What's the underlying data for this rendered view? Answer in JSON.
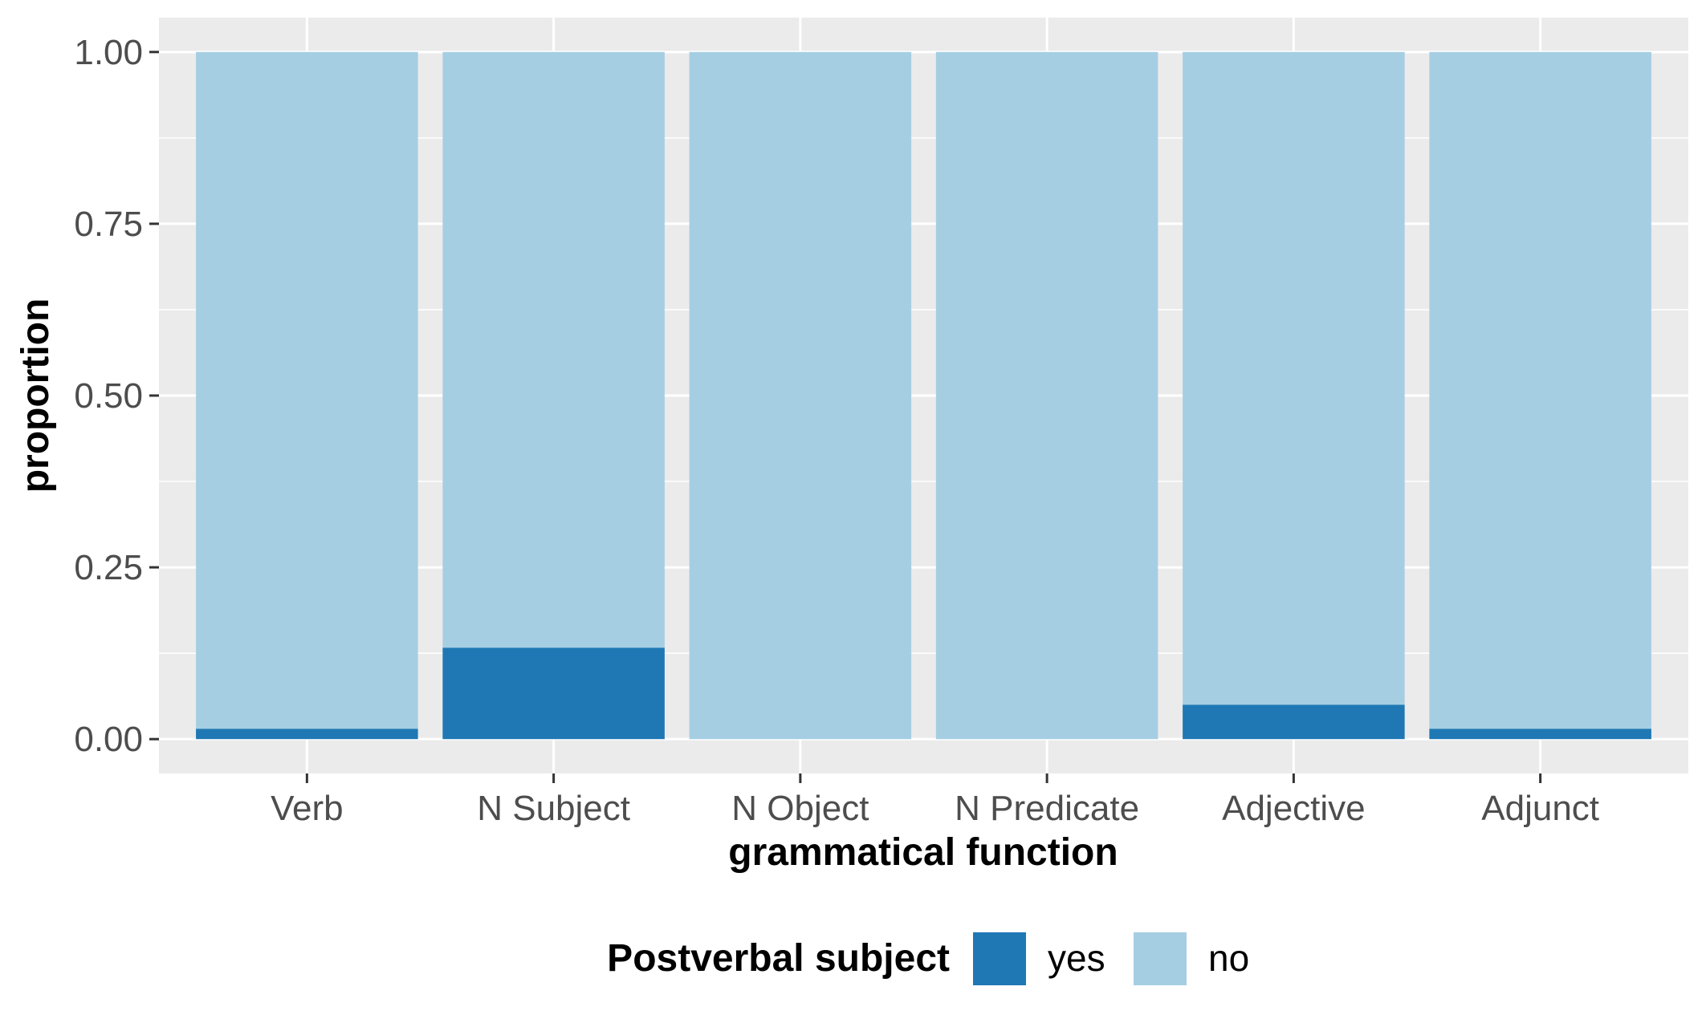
{
  "chart_data": {
    "type": "bar",
    "stacked": true,
    "categories": [
      "Verb",
      "N Subject",
      "N Object",
      "N Predicate",
      "Adjective",
      "Adjunct"
    ],
    "series": [
      {
        "name": "yes",
        "values": [
          0.015,
          0.133,
          0.0,
          0.0,
          0.05,
          0.015
        ]
      },
      {
        "name": "no",
        "values": [
          0.985,
          0.867,
          1.0,
          1.0,
          0.95,
          0.985
        ]
      }
    ],
    "xlabel": "grammatical function",
    "ylabel": "proportion",
    "ylim": [
      -0.05,
      1.05
    ],
    "yticks": [
      "0.00",
      "0.25",
      "0.50",
      "0.75",
      "1.00"
    ],
    "ytick_values": [
      0,
      0.25,
      0.5,
      0.75,
      1.0
    ],
    "grid": true,
    "legend": {
      "title": "Postverbal subject",
      "position": "bottom",
      "entries": [
        "yes",
        "no"
      ]
    },
    "colors": {
      "yes": "#1f78b4",
      "no": "#a6cee3",
      "panel": "#ebebeb",
      "grid": "#ffffff"
    }
  }
}
